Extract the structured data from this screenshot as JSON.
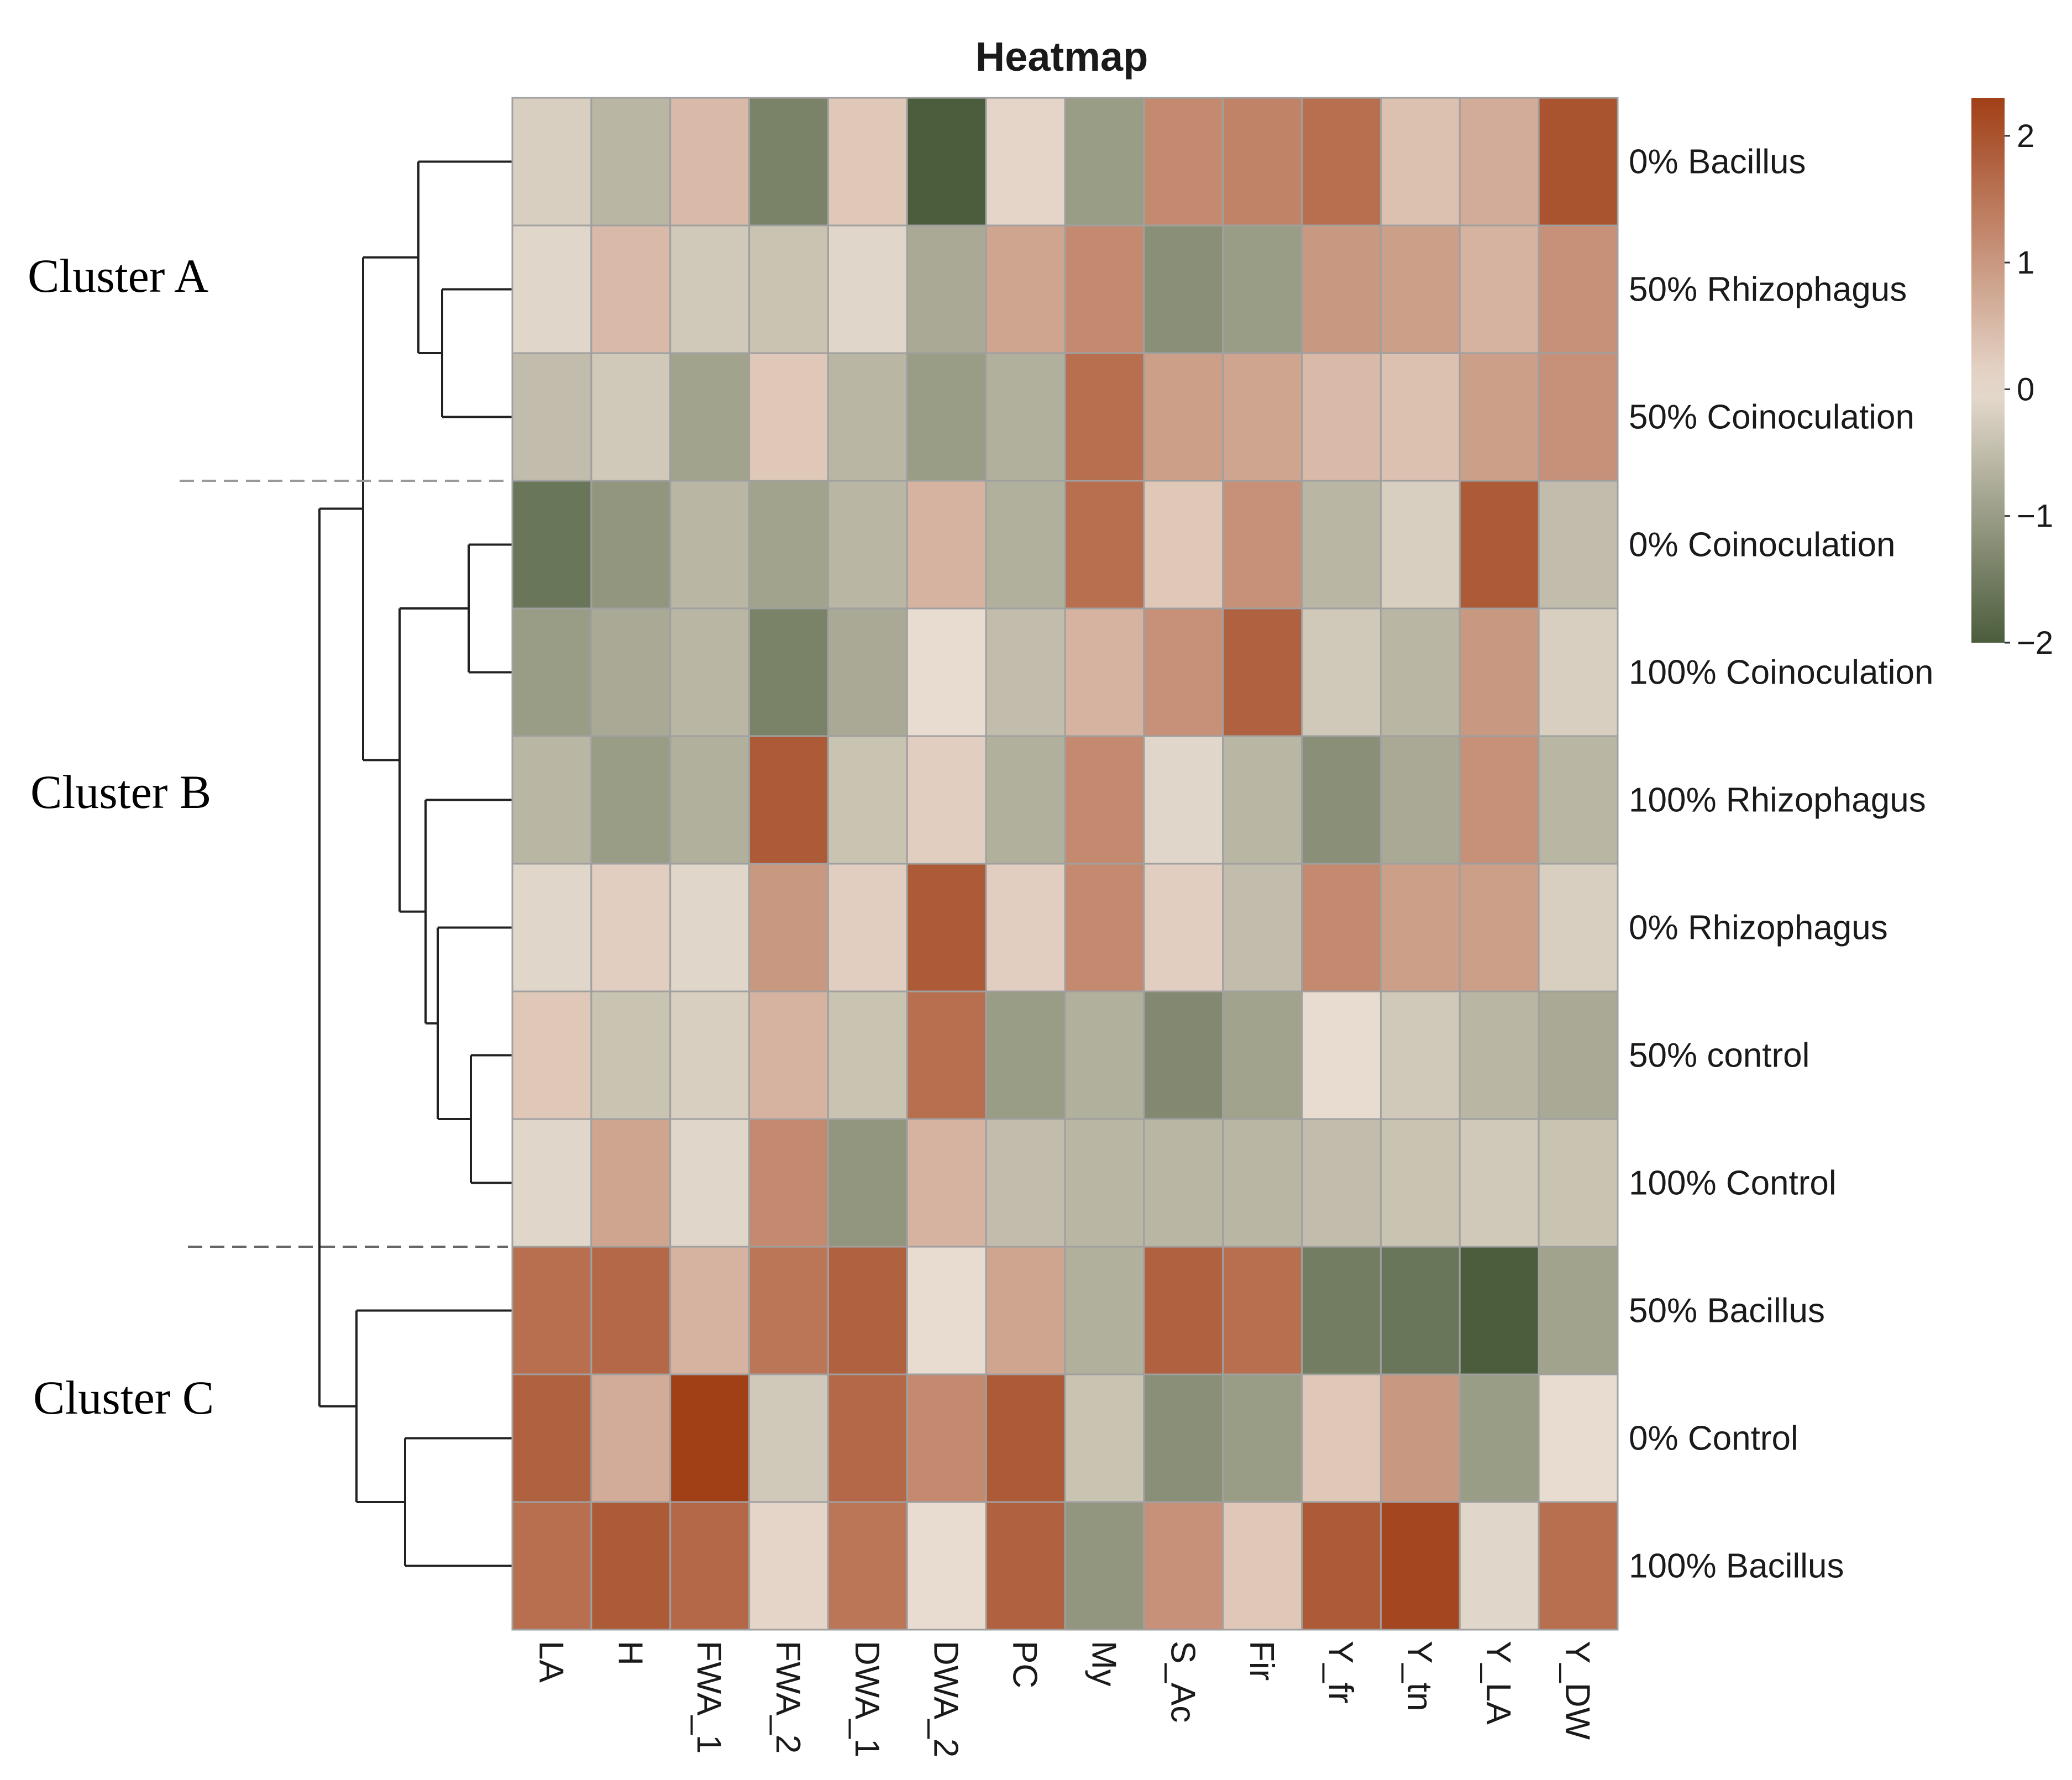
{
  "chart_data": {
    "type": "heatmap",
    "title": "Heatmap",
    "columns": [
      "LA",
      "H",
      "FWA_1",
      "FWA_2",
      "DWA_1",
      "DWA_2",
      "PC",
      "My",
      "S_Ac",
      "Fir",
      "Y_fr",
      "Y_tn",
      "Y_LA",
      "Y_DW"
    ],
    "rows": [
      "0% Bacillus",
      "50% Rhizophagus",
      "50% Coinoculation",
      "0% Coinoculation",
      "100% Coinoculation",
      "100% Rhizophagus",
      "0% Rhizophagus",
      "50% control",
      "100% Control",
      "50% Bacillus",
      "0% Control",
      "100% Bacillus"
    ],
    "values": [
      [
        -0.2,
        -0.6,
        0.5,
        -1.4,
        0.3,
        -2.0,
        0.1,
        -1.0,
        1.2,
        1.3,
        1.6,
        0.4,
        0.7,
        2.0
      ],
      [
        -0.1,
        0.5,
        -0.3,
        -0.4,
        -0.1,
        -0.8,
        0.8,
        1.2,
        -1.2,
        -1.0,
        1.0,
        0.9,
        0.6,
        1.1
      ],
      [
        -0.5,
        -0.3,
        -0.9,
        0.3,
        -0.6,
        -1.0,
        -0.7,
        1.6,
        0.9,
        0.8,
        0.5,
        0.4,
        0.9,
        1.1
      ],
      [
        -1.6,
        -1.1,
        -0.6,
        -0.9,
        -0.6,
        0.6,
        -0.7,
        1.6,
        0.3,
        1.1,
        -0.6,
        -0.2,
        1.9,
        -0.5
      ],
      [
        -1.0,
        -0.8,
        -0.6,
        -1.4,
        -0.8,
        0.0,
        -0.5,
        0.6,
        1.1,
        1.8,
        -0.3,
        -0.6,
        1.0,
        -0.2
      ],
      [
        -0.6,
        -1.0,
        -0.7,
        1.9,
        -0.4,
        0.2,
        -0.7,
        1.2,
        -0.1,
        -0.6,
        -1.2,
        -0.8,
        1.1,
        -0.6
      ],
      [
        -0.1,
        0.2,
        -0.1,
        1.0,
        0.2,
        1.9,
        0.2,
        1.2,
        0.2,
        -0.5,
        1.2,
        0.9,
        0.9,
        -0.2
      ],
      [
        0.3,
        -0.4,
        -0.2,
        0.6,
        -0.4,
        1.6,
        -1.0,
        -0.7,
        -1.3,
        -0.9,
        0.0,
        -0.3,
        -0.6,
        -0.8
      ],
      [
        -0.1,
        0.8,
        -0.1,
        1.2,
        -1.1,
        0.6,
        -0.5,
        -0.6,
        -0.6,
        -0.6,
        -0.5,
        -0.4,
        -0.3,
        -0.4
      ],
      [
        1.6,
        1.7,
        0.6,
        1.5,
        1.8,
        0.0,
        0.8,
        -0.7,
        1.8,
        1.6,
        -1.5,
        -1.6,
        -2.0,
        -0.9
      ],
      [
        1.8,
        0.7,
        2.3,
        -0.3,
        1.7,
        1.2,
        1.9,
        -0.4,
        -1.2,
        -1.0,
        0.3,
        1.0,
        -1.0,
        0.0
      ],
      [
        1.6,
        1.9,
        1.7,
        0.1,
        1.5,
        0.0,
        1.8,
        -1.1,
        1.1,
        0.3,
        1.9,
        2.2,
        -0.1,
        1.6
      ]
    ],
    "color_scale": {
      "min": -2,
      "max": 2.3,
      "low": "#4b5d3c",
      "mid": "#e8dcd0",
      "high": "#a13f17"
    },
    "legend_ticks": [
      "2",
      "1",
      "0",
      "−1",
      "−2"
    ],
    "legend_tick_values": [
      2,
      1,
      0,
      -1,
      -2
    ],
    "clusters": [
      {
        "label": "Cluster A",
        "rows": [
          0,
          1,
          2
        ]
      },
      {
        "label": "Cluster B",
        "rows": [
          3,
          4,
          5,
          6,
          7,
          8
        ]
      },
      {
        "label": "Cluster C",
        "rows": [
          9,
          10,
          11
        ]
      }
    ],
    "legend_placement": "top-right",
    "grid_lines": "#a0a0a0"
  }
}
